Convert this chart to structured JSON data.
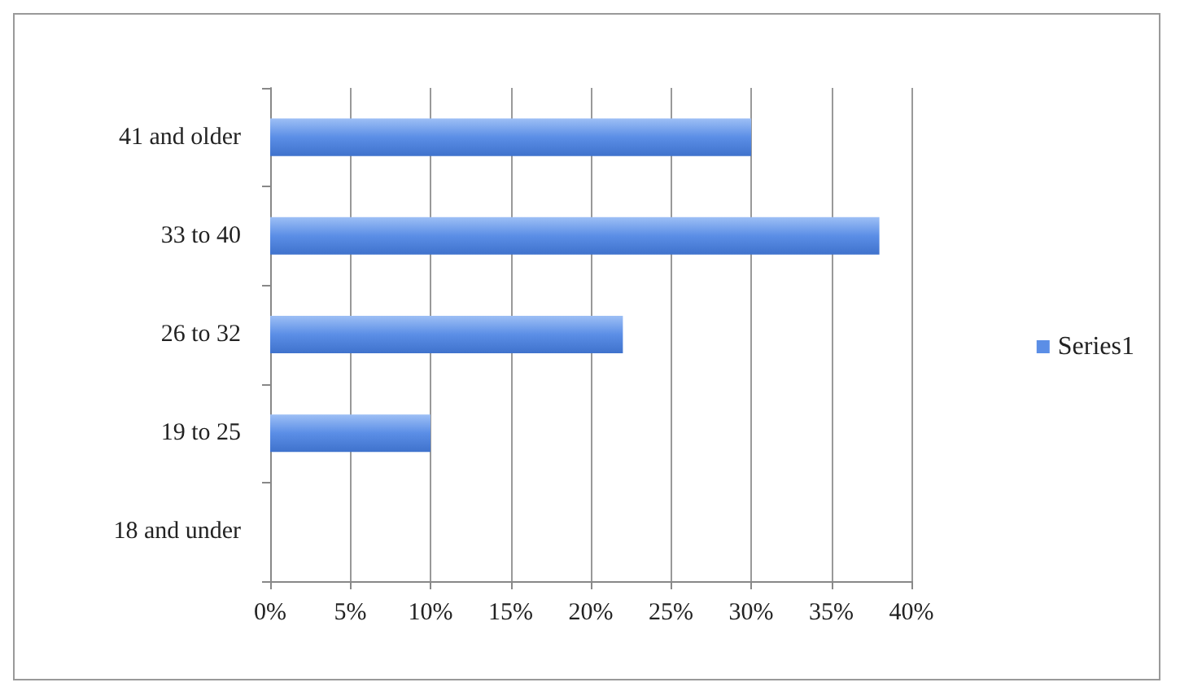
{
  "chart_data": {
    "type": "bar",
    "orientation": "horizontal",
    "categories": [
      "41 and older",
      "33 to 40",
      "26 to 32",
      "19 to 25",
      "18 and under"
    ],
    "series": [
      {
        "name": "Series1",
        "color": "#5b8ee6",
        "values": [
          30,
          38,
          22,
          10,
          0
        ]
      }
    ],
    "xlim": [
      0,
      40
    ],
    "xticks": [
      {
        "value": 0,
        "label": "0%"
      },
      {
        "value": 5,
        "label": "5%"
      },
      {
        "value": 10,
        "label": "10%"
      },
      {
        "value": 15,
        "label": "15%"
      },
      {
        "value": 20,
        "label": "20%"
      },
      {
        "value": 25,
        "label": "25%"
      },
      {
        "value": 30,
        "label": "30%"
      },
      {
        "value": 35,
        "label": "35%"
      },
      {
        "value": 40,
        "label": "40%"
      }
    ],
    "grid": "x",
    "legend": "right"
  }
}
